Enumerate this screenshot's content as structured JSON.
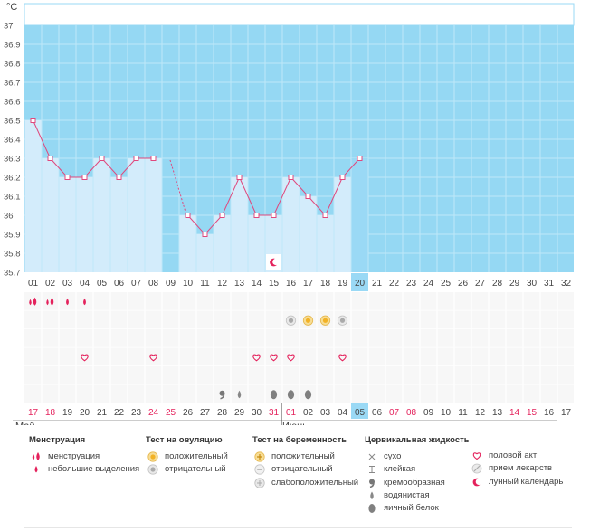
{
  "chart_data": {
    "type": "bar+line",
    "unit_label": "°C",
    "ylim": [
      35.7,
      37.0
    ],
    "yticks": [
      "37",
      "36.9",
      "36.8",
      "36.7",
      "36.6",
      "36.5",
      "36.4",
      "36.3",
      "36.2",
      "36.1",
      "36",
      "35.9",
      "35.8",
      "35.7"
    ],
    "cycle_days": [
      "01",
      "02",
      "03",
      "04",
      "05",
      "06",
      "07",
      "08",
      "09",
      "10",
      "11",
      "12",
      "13",
      "14",
      "15",
      "16",
      "17",
      "18",
      "19",
      "20",
      "21",
      "22",
      "23",
      "24",
      "25",
      "26",
      "27",
      "28",
      "29",
      "30",
      "31",
      "32"
    ],
    "highlight_day_index": 19,
    "temperatures": [
      36.5,
      36.3,
      36.2,
      36.2,
      36.3,
      36.2,
      36.3,
      36.3,
      null,
      36.0,
      35.9,
      36.0,
      36.2,
      36.0,
      36.0,
      36.2,
      36.1,
      36.0,
      36.2,
      36.3,
      null,
      null,
      null,
      null,
      null,
      null,
      null,
      null,
      null,
      null,
      null,
      null
    ],
    "dashed_segment_days": [
      8,
      9
    ],
    "calendar_dates": [
      "17",
      "18",
      "19",
      "20",
      "21",
      "22",
      "23",
      "24",
      "25",
      "26",
      "27",
      "28",
      "29",
      "30",
      "31",
      "01",
      "02",
      "03",
      "04",
      "05",
      "06",
      "07",
      "08",
      "09",
      "10",
      "11",
      "12",
      "13",
      "14",
      "15",
      "16",
      "17"
    ],
    "weekend_indices": [
      0,
      1,
      7,
      8,
      14,
      15,
      21,
      22,
      28,
      29
    ],
    "months": [
      {
        "label": "Май",
        "start_index": 0
      },
      {
        "label": "Июнь",
        "start_index": 15
      }
    ],
    "marker_rows": [
      [
        {
          "day": 0,
          "icon": "menstruation-icon"
        },
        {
          "day": 1,
          "icon": "menstruation-icon"
        },
        {
          "day": 2,
          "icon": "light-spotting-icon"
        },
        {
          "day": 3,
          "icon": "light-spotting-icon"
        }
      ],
      [
        {
          "day": 15,
          "icon": "ovulation-negative-icon"
        },
        {
          "day": 16,
          "icon": "ovulation-positive-icon"
        },
        {
          "day": 17,
          "icon": "ovulation-positive-icon"
        },
        {
          "day": 18,
          "icon": "ovulation-negative-icon"
        }
      ],
      [],
      [
        {
          "day": 3,
          "icon": "heart-icon"
        },
        {
          "day": 7,
          "icon": "heart-icon"
        },
        {
          "day": 13,
          "icon": "heart-icon"
        },
        {
          "day": 14,
          "icon": "heart-icon"
        },
        {
          "day": 15,
          "icon": "heart-icon"
        },
        {
          "day": 18,
          "icon": "heart-icon"
        }
      ],
      [],
      [
        {
          "day": 11,
          "icon": "creamy-icon"
        },
        {
          "day": 12,
          "icon": "watery-icon"
        },
        {
          "day": 14,
          "icon": "egg-white-icon"
        },
        {
          "day": 15,
          "icon": "egg-white-icon"
        },
        {
          "day": 16,
          "icon": "egg-white-icon"
        }
      ]
    ],
    "chart_markers": [
      {
        "day": 14,
        "icon": "moon-icon"
      }
    ]
  },
  "legend": {
    "menstruation": {
      "title": "Менструация",
      "items": [
        {
          "icon": "menstruation-icon",
          "label": "менструация"
        },
        {
          "icon": "light-spotting-icon",
          "label": "небольшие выделения"
        }
      ]
    },
    "ovulation_test": {
      "title": "Тест на овуляцию",
      "items": [
        {
          "icon": "ovulation-positive-icon",
          "label": "положительный"
        },
        {
          "icon": "ovulation-negative-icon",
          "label": "отрицательный"
        }
      ]
    },
    "pregnancy_test": {
      "title": "Тест на беременность",
      "items": [
        {
          "icon": "pregnancy-positive-icon",
          "label": "положительный"
        },
        {
          "icon": "pregnancy-negative-icon",
          "label": "отрицательный"
        },
        {
          "icon": "pregnancy-faint-icon",
          "label": "слабоположительный"
        }
      ]
    },
    "cervical": {
      "title": "Цервикальная жидкость",
      "items": [
        {
          "icon": "dry-icon",
          "label": "сухо"
        },
        {
          "icon": "sticky-icon",
          "label": "клейкая"
        },
        {
          "icon": "creamy-icon",
          "label": "кремообразная"
        },
        {
          "icon": "watery-icon",
          "label": "водянистая"
        },
        {
          "icon": "egg-white-icon",
          "label": "яичный белок"
        }
      ]
    },
    "other": {
      "items": [
        {
          "icon": "heart-icon",
          "label": "половой акт"
        },
        {
          "icon": "medication-icon",
          "label": "прием лекарств"
        },
        {
          "icon": "moon-icon",
          "label": "лунный календарь"
        }
      ]
    }
  },
  "colors": {
    "chart_bg": "#95d8f3",
    "bar": "#d3ecfb",
    "bar_highlight": "#9ad9f5",
    "line": "#e0487d",
    "weekend": "#e4225c",
    "grid": "#bfe8f8"
  }
}
